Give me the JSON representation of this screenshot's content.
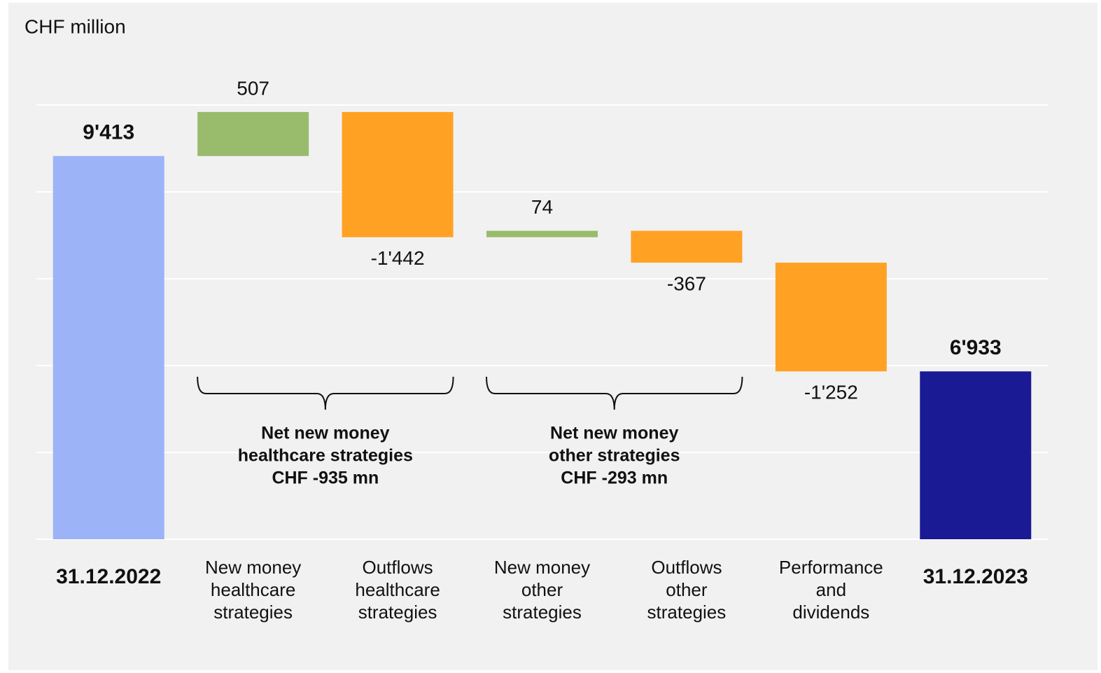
{
  "chart_data": {
    "type": "waterfall",
    "ylabel": "CHF million",
    "categories": [
      "31.12.2022",
      "New money\nhealthcare\nstrategies",
      "Outflows\nhealthcare\nstrategies",
      "New money\nother\nstrategies",
      "Outflows\nother\nstrategies",
      "Performance\nand\ndividends",
      "31.12.2023"
    ],
    "measure": [
      "absolute",
      "relative",
      "relative",
      "relative",
      "relative",
      "relative",
      "total"
    ],
    "values": [
      9413,
      507,
      -1442,
      74,
      -367,
      -1252,
      6933
    ],
    "value_labels": [
      "9'413",
      "507",
      "-1'442",
      "74",
      "-367",
      "-1'252",
      "6'933"
    ],
    "colors": [
      "#9db3f8",
      "#98bb6c",
      "#ffa224",
      "#98bb6c",
      "#ffa224",
      "#ffa224",
      "#1a1a94"
    ],
    "ylim": [
      5000,
      10000
    ],
    "yticks": [
      5000,
      6000,
      7000,
      8000,
      9000,
      10000
    ],
    "grid": true,
    "annotations": [
      {
        "span": [
          1,
          2
        ],
        "lines": [
          "Net new money",
          "healthcare strategies",
          "CHF -935 mn"
        ]
      },
      {
        "span": [
          3,
          4
        ],
        "lines": [
          "Net new money",
          "other strategies",
          "CHF -293 mn"
        ]
      }
    ]
  }
}
